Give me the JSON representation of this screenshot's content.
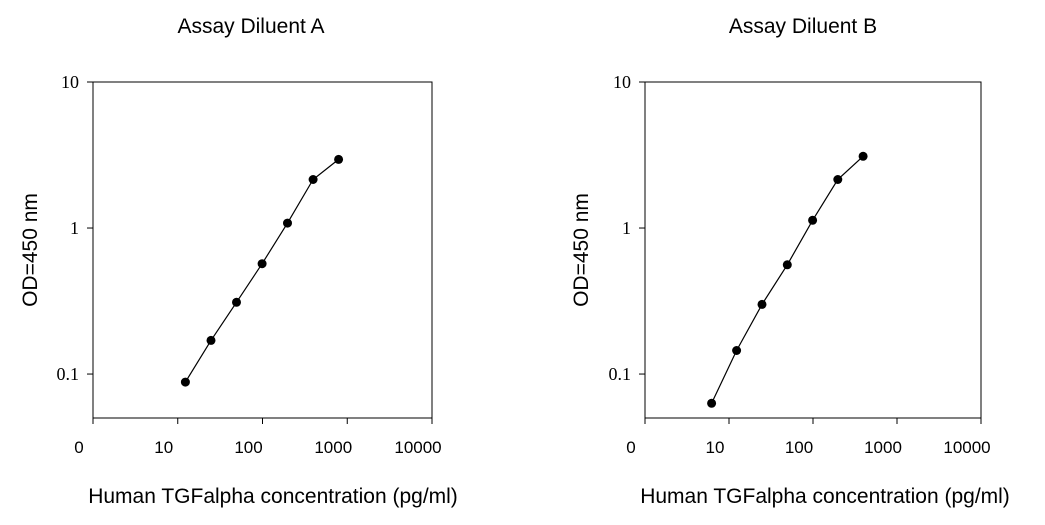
{
  "chart_data": [
    {
      "type": "line",
      "title": "Assay Diluent A",
      "xlabel": "Human TGFalpha concentration (pg/ml)",
      "ylabel": "OD=450 nm",
      "x_scale": "log",
      "y_scale": "log",
      "x_tick_labels": [
        "0",
        "10",
        "100",
        "1000",
        "10000"
      ],
      "y_tick_labels": [
        "10",
        "1",
        "0.1"
      ],
      "xlim": [
        1,
        10000
      ],
      "ylim": [
        0.05,
        10
      ],
      "grid": false,
      "marker": "filled-circle",
      "color": "#000000",
      "series": [
        {
          "x": [
            12.3,
            24.7,
            49.4,
            98.8,
            197.5,
            395,
            790
          ],
          "y": [
            0.088,
            0.17,
            0.31,
            0.57,
            1.08,
            2.15,
            2.95
          ]
        }
      ]
    },
    {
      "type": "line",
      "title": "Assay Diluent B",
      "xlabel": "Human TGFalpha concentration (pg/ml)",
      "ylabel": "OD=450 nm",
      "x_scale": "log",
      "y_scale": "log",
      "x_tick_labels": [
        "0",
        "10",
        "100",
        "1000",
        "10000"
      ],
      "y_tick_labels": [
        "10",
        "1",
        "0.1"
      ],
      "xlim": [
        1,
        10000
      ],
      "ylim": [
        0.05,
        10
      ],
      "grid": false,
      "marker": "filled-circle",
      "color": "#000000",
      "series": [
        {
          "x": [
            6.2,
            12.3,
            24.7,
            49.4,
            98.8,
            197.5,
            395
          ],
          "y": [
            0.063,
            0.145,
            0.3,
            0.56,
            1.13,
            2.15,
            3.1
          ]
        }
      ]
    }
  ]
}
